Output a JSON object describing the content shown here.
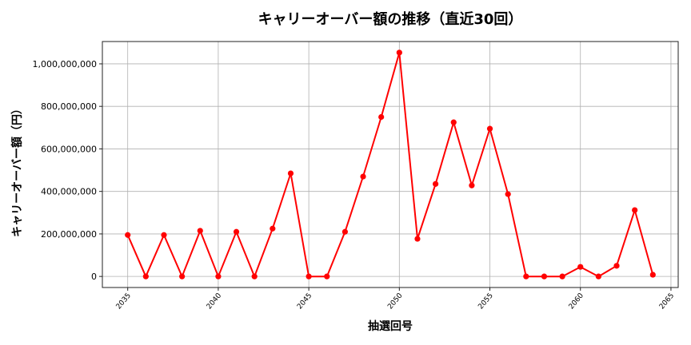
{
  "chart_data": {
    "type": "line",
    "title": "キャリーオーバー額の推移（直近30回）",
    "xlabel": "抽選回号",
    "ylabel": "キャリーオーバー額（円）",
    "x": [
      2035,
      2036,
      2037,
      2038,
      2039,
      2040,
      2041,
      2042,
      2043,
      2044,
      2045,
      2046,
      2047,
      2048,
      2049,
      2050,
      2051,
      2052,
      2053,
      2054,
      2055,
      2056,
      2057,
      2058,
      2059,
      2060,
      2061,
      2062,
      2063,
      2064
    ],
    "series": [
      {
        "name": "キャリーオーバー額",
        "color": "#ff0000",
        "marker": "circle",
        "values": [
          195000000,
          0,
          195000000,
          0,
          215000000,
          0,
          210000000,
          0,
          225000000,
          485000000,
          0,
          0,
          210000000,
          470000000,
          750000000,
          1053000000,
          177000000,
          435000000,
          725000000,
          428000000,
          695000000,
          387000000,
          0,
          0,
          0,
          45000000,
          0,
          50000000,
          312000000,
          8000000
        ]
      }
    ],
    "xticks": [
      2035,
      2040,
      2045,
      2050,
      2055,
      2060,
      2065
    ],
    "yticks": [
      0,
      200000000,
      400000000,
      600000000,
      800000000,
      1000000000
    ],
    "ytick_labels": [
      "0",
      "200,000,000",
      "400,000,000",
      "600,000,000",
      "800,000,000",
      "1,000,000,000"
    ],
    "xlim": [
      2033.6,
      2065.4
    ],
    "ylim": [
      -52000000,
      1105000000
    ],
    "grid": true,
    "legend": "none"
  }
}
